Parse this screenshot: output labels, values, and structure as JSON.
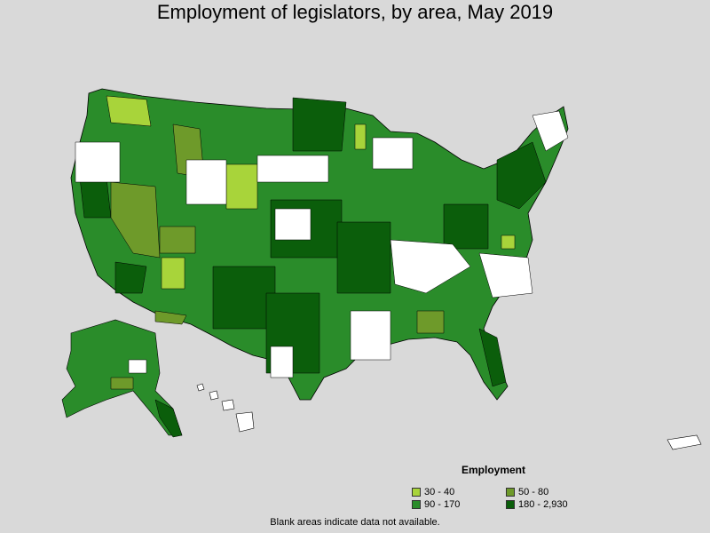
{
  "title": "Employment of legislators, by area, May 2019",
  "legend": {
    "title": "Employment",
    "items": [
      {
        "label": "30 - 40",
        "color": "#a8d43a"
      },
      {
        "label": "50 - 80",
        "color": "#6e9a2a"
      },
      {
        "label": "90 - 170",
        "color": "#2a8c2a"
      },
      {
        "label": "180 - 2,930",
        "color": "#0b5e0b"
      }
    ]
  },
  "colors": {
    "background": "#d9d9d9",
    "no_data": "#ffffff",
    "border": "#000000"
  },
  "footnote": "Blank areas indicate data not available."
}
